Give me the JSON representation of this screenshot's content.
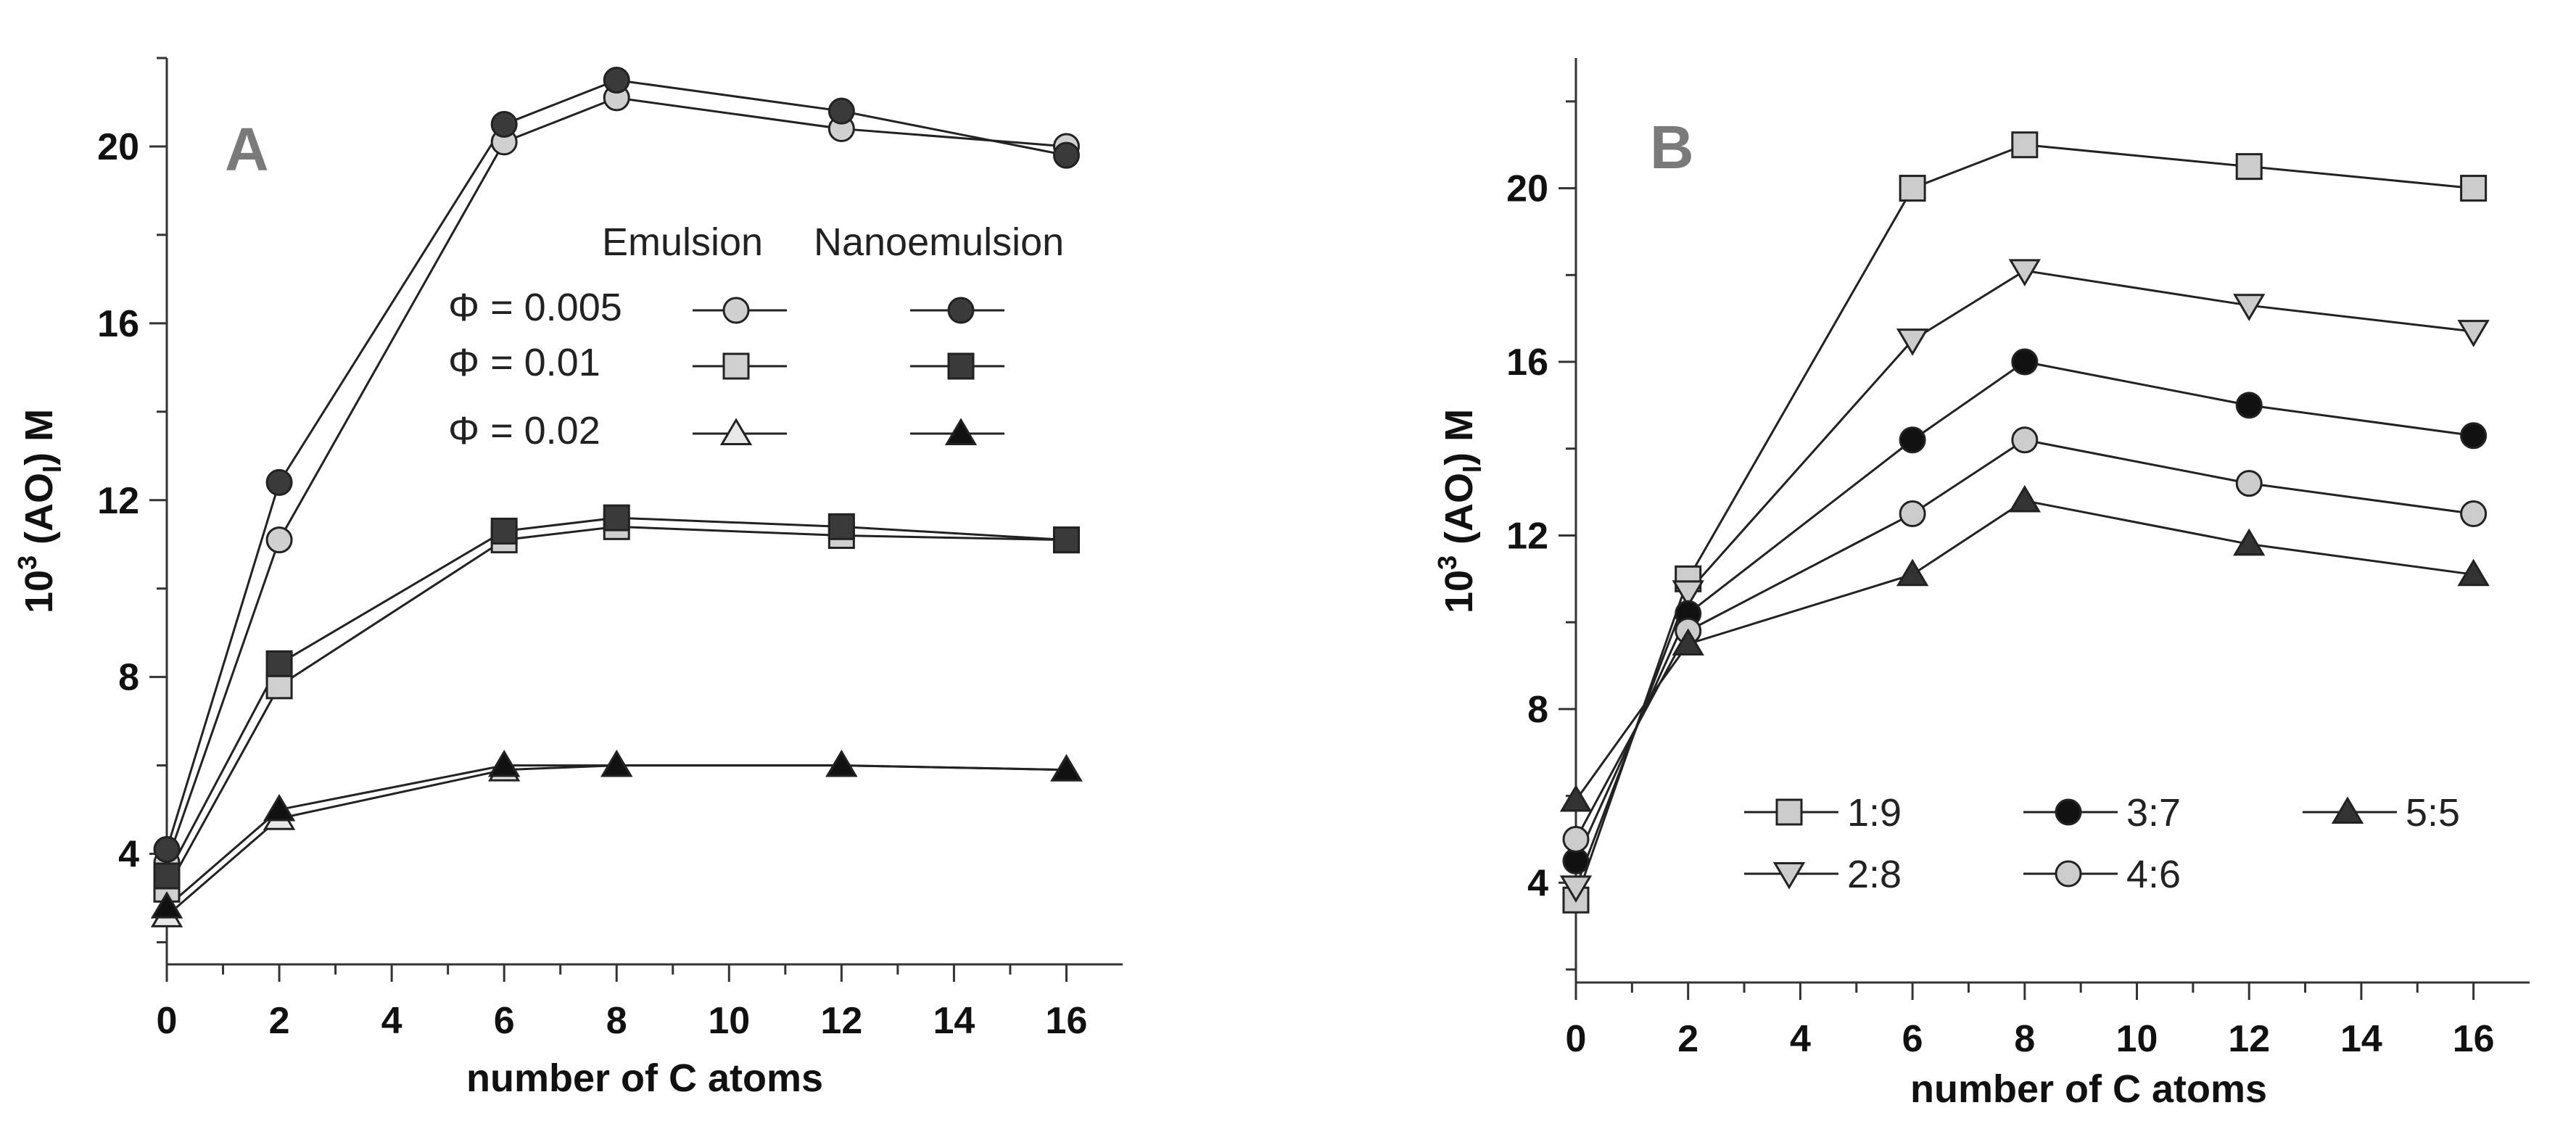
{
  "chart_data": [
    {
      "panel": "A",
      "type": "line",
      "xlabel": "number of C atoms",
      "ylabel_main": "10",
      "ylabel_sup": "3",
      "ylabel_mid": " (AO",
      "ylabel_sub": "I",
      "ylabel_end": ") M",
      "xlim": [
        0,
        17
      ],
      "ylim": [
        1.5,
        22
      ],
      "xticks": [
        0,
        2,
        4,
        6,
        8,
        10,
        12,
        14,
        16
      ],
      "yticks": [
        4,
        8,
        12,
        16,
        20
      ],
      "x": [
        0,
        2,
        6,
        8,
        12,
        16
      ],
      "legend_headers": [
        "Emulsion",
        "Nanoemulsion"
      ],
      "legend_rows": [
        "Φ = 0.005",
        "Φ = 0.01",
        "Φ = 0.02"
      ],
      "series": [
        {
          "name": "Emulsion Φ = 0.005",
          "marker": "circle",
          "fill": "#d0d0d0",
          "values": [
            3.8,
            11.1,
            20.1,
            21.1,
            20.4,
            20.0
          ]
        },
        {
          "name": "Nanoemulsion Φ = 0.005",
          "marker": "circle",
          "fill": "#3a3a3a",
          "values": [
            4.1,
            12.4,
            20.5,
            21.5,
            20.8,
            19.8
          ]
        },
        {
          "name": "Emulsion Φ = 0.01",
          "marker": "square",
          "fill": "#d0d0d0",
          "values": [
            3.2,
            7.8,
            11.1,
            11.4,
            11.2,
            11.1
          ]
        },
        {
          "name": "Nanoemulsion Φ = 0.01",
          "marker": "square",
          "fill": "#3a3a3a",
          "values": [
            3.5,
            8.3,
            11.3,
            11.6,
            11.4,
            11.1
          ]
        },
        {
          "name": "Emulsion Φ = 0.02",
          "marker": "triangle-up",
          "fill": "#e8e8e8",
          "values": [
            2.6,
            4.8,
            5.9,
            6.0,
            6.0,
            5.9
          ]
        },
        {
          "name": "Nanoemulsion Φ = 0.02",
          "marker": "triangle-up",
          "fill": "#111111",
          "values": [
            2.8,
            5.0,
            6.0,
            6.0,
            6.0,
            5.9
          ]
        }
      ]
    },
    {
      "panel": "B",
      "type": "line",
      "xlabel": "number of C atoms",
      "ylabel_main": "10",
      "ylabel_sup": "3",
      "ylabel_mid": " (AO",
      "ylabel_sub": "I",
      "ylabel_end": ") M",
      "xlim": [
        0,
        17
      ],
      "ylim": [
        1.7,
        23
      ],
      "xticks": [
        0,
        2,
        4,
        6,
        8,
        10,
        12,
        14,
        16
      ],
      "yticks": [
        4,
        8,
        12,
        16,
        20
      ],
      "x": [
        0,
        2,
        6,
        8,
        12,
        16
      ],
      "series": [
        {
          "name": "1:9",
          "marker": "square",
          "fill": "#cccccc",
          "values": [
            3.6,
            11.0,
            20.0,
            21.0,
            20.5,
            20.0
          ]
        },
        {
          "name": "2:8",
          "marker": "triangle-down",
          "fill": "#cccccc",
          "values": [
            3.9,
            10.7,
            16.5,
            18.1,
            17.3,
            16.7
          ]
        },
        {
          "name": "3:7",
          "marker": "circle",
          "fill": "#111111",
          "values": [
            4.5,
            10.2,
            14.2,
            16.0,
            15.0,
            14.3
          ]
        },
        {
          "name": "4:6",
          "marker": "circle",
          "fill": "#cccccc",
          "values": [
            5.0,
            9.8,
            12.5,
            14.2,
            13.2,
            12.5
          ]
        },
        {
          "name": "5:5",
          "marker": "triangle-up",
          "fill": "#333333",
          "values": [
            5.9,
            9.5,
            11.1,
            12.8,
            11.8,
            11.1
          ]
        }
      ]
    }
  ]
}
